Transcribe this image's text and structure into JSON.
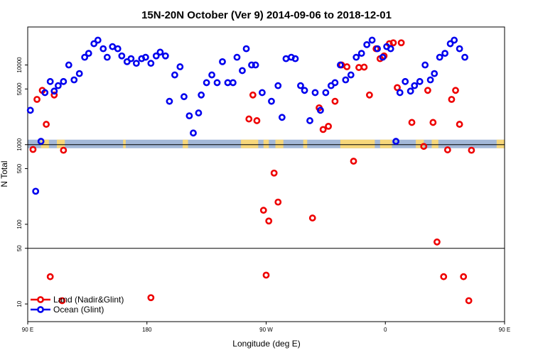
{
  "chart_data": {
    "type": "scatter",
    "title": "15N-20N October (Ver 9)   2014-09-06 to 2018-12-01",
    "xlabel": "Longitude (deg E)",
    "ylabel": "N Total",
    "xlim": [
      90,
      450
    ],
    "ylim_log": [
      6,
      30000
    ],
    "x_ticks": [
      {
        "value": 90,
        "label": "90 E"
      },
      {
        "value": 180,
        "label": "180"
      },
      {
        "value": 270,
        "label": "90 W"
      },
      {
        "value": 360,
        "label": "0"
      },
      {
        "value": 450,
        "label": "90 E"
      },
      {
        "value": 540,
        "label": "180"
      }
    ],
    "y_ticks": [
      {
        "value": 10,
        "label": "10"
      },
      {
        "value": 50,
        "label": "50"
      },
      {
        "value": 100,
        "label": "100"
      },
      {
        "value": 500,
        "label": "500"
      },
      {
        "value": 1000,
        "label": "1000"
      },
      {
        "value": 5000,
        "label": "5000"
      },
      {
        "value": 10000,
        "label": "10000"
      }
    ],
    "divider_values": [
      50,
      1000
    ],
    "colors": {
      "land": "#ee0000",
      "ocean": "#0000ee",
      "band_land": "#f7d77a",
      "band_ocean": "#a3b8d8"
    },
    "legend": {
      "position": "bottom-left"
    },
    "series": [
      {
        "name": "Land (Nadir&Glint)",
        "key": "land",
        "color": "#ee0000",
        "points": [
          [
            94,
            870
          ],
          [
            97,
            3700
          ],
          [
            101,
            4800
          ],
          [
            104,
            1800
          ],
          [
            107,
            22
          ],
          [
            110,
            4200
          ],
          [
            116,
            11
          ],
          [
            117,
            850
          ],
          [
            183,
            12
          ],
          [
            257,
            2100
          ],
          [
            260,
            4200
          ],
          [
            263,
            2000
          ],
          [
            268,
            150
          ],
          [
            270,
            23
          ],
          [
            272,
            110
          ],
          [
            276,
            440
          ],
          [
            279,
            190
          ],
          [
            305,
            120
          ],
          [
            310,
            2900
          ],
          [
            313,
            1550
          ],
          [
            317,
            1700
          ],
          [
            322,
            3500
          ],
          [
            327,
            10000
          ],
          [
            331,
            9500
          ],
          [
            336,
            620
          ],
          [
            340,
            9300
          ],
          [
            344,
            9400
          ],
          [
            348,
            4200
          ],
          [
            353,
            16000
          ],
          [
            356,
            12000
          ],
          [
            359,
            13000
          ],
          [
            363,
            18500
          ],
          [
            366,
            19000
          ],
          [
            369,
            5200
          ],
          [
            372,
            19000
          ],
          [
            380,
            1900
          ],
          [
            389,
            950
          ],
          [
            392,
            4800
          ],
          [
            396,
            1900
          ],
          [
            399,
            60
          ],
          [
            404,
            22
          ],
          [
            407,
            860
          ],
          [
            410,
            3700
          ],
          [
            413,
            4800
          ],
          [
            416,
            1800
          ],
          [
            419,
            22
          ],
          [
            423,
            11
          ],
          [
            425,
            850
          ]
        ]
      },
      {
        "name": "Ocean (Glint)",
        "key": "ocean",
        "color": "#0000ee",
        "points": [
          [
            92,
            2700
          ],
          [
            96,
            260
          ],
          [
            100,
            1100
          ],
          [
            103,
            4500
          ],
          [
            107,
            6200
          ],
          [
            110,
            4700
          ],
          [
            113,
            5500
          ],
          [
            117,
            6200
          ],
          [
            121,
            10000
          ],
          [
            125,
            6500
          ],
          [
            129,
            7800
          ],
          [
            133,
            12500
          ],
          [
            136,
            14000
          ],
          [
            140,
            18500
          ],
          [
            143,
            20500
          ],
          [
            147,
            16000
          ],
          [
            150,
            12500
          ],
          [
            154,
            17000
          ],
          [
            158,
            16000
          ],
          [
            161,
            13000
          ],
          [
            165,
            11000
          ],
          [
            168,
            12000
          ],
          [
            172,
            10500
          ],
          [
            176,
            12000
          ],
          [
            179,
            12500
          ],
          [
            183,
            10500
          ],
          [
            187,
            13000
          ],
          [
            190,
            14500
          ],
          [
            194,
            13000
          ],
          [
            197,
            3500
          ],
          [
            201,
            7500
          ],
          [
            205,
            9500
          ],
          [
            208,
            4000
          ],
          [
            212,
            2300
          ],
          [
            215,
            1400
          ],
          [
            219,
            2500
          ],
          [
            221,
            4200
          ],
          [
            225,
            6000
          ],
          [
            229,
            7500
          ],
          [
            233,
            6000
          ],
          [
            237,
            11000
          ],
          [
            241,
            6000
          ],
          [
            245,
            6000
          ],
          [
            248,
            12500
          ],
          [
            252,
            8500
          ],
          [
            255,
            16000
          ],
          [
            259,
            10000
          ],
          [
            262,
            10000
          ],
          [
            267,
            4500
          ],
          [
            274,
            3500
          ],
          [
            279,
            5500
          ],
          [
            282,
            2200
          ],
          [
            285,
            12000
          ],
          [
            289,
            12500
          ],
          [
            292,
            12000
          ],
          [
            296,
            5500
          ],
          [
            299,
            4800
          ],
          [
            303,
            2000
          ],
          [
            307,
            4500
          ],
          [
            311,
            2700
          ],
          [
            315,
            4500
          ],
          [
            319,
            5500
          ],
          [
            322,
            6000
          ],
          [
            326,
            10000
          ],
          [
            330,
            6500
          ],
          [
            334,
            7500
          ],
          [
            338,
            12500
          ],
          [
            342,
            14000
          ],
          [
            346,
            18000
          ],
          [
            350,
            20500
          ],
          [
            354,
            16000
          ],
          [
            358,
            12500
          ],
          [
            361,
            17000
          ],
          [
            364,
            16000
          ],
          [
            368,
            1100
          ],
          [
            371,
            4500
          ],
          [
            375,
            6200
          ],
          [
            379,
            4700
          ],
          [
            382,
            5500
          ],
          [
            386,
            6200
          ],
          [
            390,
            10000
          ],
          [
            394,
            6500
          ],
          [
            397,
            7800
          ],
          [
            401,
            12500
          ],
          [
            405,
            14000
          ],
          [
            409,
            18500
          ],
          [
            412,
            20500
          ],
          [
            416,
            16000
          ],
          [
            420,
            12500
          ]
        ]
      }
    ]
  }
}
